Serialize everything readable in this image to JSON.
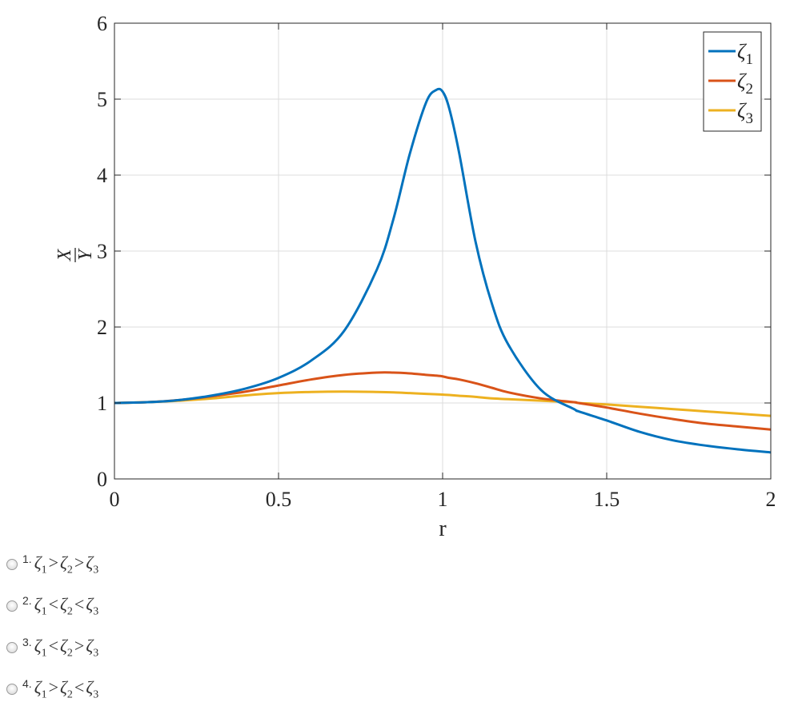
{
  "chart_data": {
    "type": "line",
    "xlabel": "r",
    "ylabel_num": "X",
    "ylabel_den": "Y",
    "xlim": [
      0,
      2
    ],
    "ylim": [
      0,
      6
    ],
    "xticks": [
      0,
      0.5,
      1,
      1.5,
      2
    ],
    "xtick_labels": [
      "0",
      "0.5",
      "1",
      "1.5",
      "2"
    ],
    "yticks": [
      0,
      1,
      2,
      3,
      4,
      5,
      6
    ],
    "ytick_labels": [
      "0",
      "1",
      "2",
      "3",
      "4",
      "5",
      "6"
    ],
    "grid": true,
    "legend_position": "top-right",
    "x": [
      0,
      0.1,
      0.2,
      0.3,
      0.4,
      0.5,
      0.6,
      0.7,
      0.8,
      0.85,
      0.9,
      0.95,
      0.98,
      1.0,
      1.02,
      1.05,
      1.1,
      1.15,
      1.2,
      1.3,
      1.4,
      1.414,
      1.5,
      1.6,
      1.7,
      1.8,
      1.9,
      2.0
    ],
    "series": [
      {
        "name": "ζ",
        "sub": "1",
        "color": "#0072BD",
        "values": [
          1.0,
          1.01,
          1.04,
          1.1,
          1.19,
          1.33,
          1.56,
          1.95,
          2.76,
          3.42,
          4.28,
          4.96,
          5.12,
          5.1,
          4.88,
          4.3,
          3.13,
          2.31,
          1.77,
          1.17,
          0.92,
          0.89,
          0.77,
          0.62,
          0.51,
          0.44,
          0.39,
          0.35
        ]
      },
      {
        "name": "ζ",
        "sub": "2",
        "color": "#D95319",
        "values": [
          1.0,
          1.01,
          1.04,
          1.09,
          1.15,
          1.23,
          1.31,
          1.37,
          1.4,
          1.4,
          1.39,
          1.37,
          1.36,
          1.35,
          1.33,
          1.31,
          1.26,
          1.2,
          1.14,
          1.06,
          1.01,
          1.0,
          0.94,
          0.86,
          0.79,
          0.73,
          0.69,
          0.65
        ]
      },
      {
        "name": "ζ",
        "sub": "3",
        "color": "#EDB120",
        "values": [
          1.0,
          1.01,
          1.03,
          1.06,
          1.1,
          1.13,
          1.145,
          1.15,
          1.145,
          1.14,
          1.13,
          1.12,
          1.115,
          1.11,
          1.105,
          1.095,
          1.08,
          1.06,
          1.05,
          1.03,
          1.01,
          1.0,
          0.98,
          0.95,
          0.92,
          0.89,
          0.86,
          0.83
        ]
      }
    ]
  },
  "options": [
    {
      "num": "1.",
      "rel1": ">",
      "rel2": ">"
    },
    {
      "num": "2.",
      "rel1": "<",
      "rel2": "<"
    },
    {
      "num": "3.",
      "rel1": "<",
      "rel2": ">"
    },
    {
      "num": "4.",
      "rel1": ">",
      "rel2": "<"
    }
  ],
  "option_symbol": "ζ",
  "option_subs": [
    "1",
    "2",
    "3"
  ]
}
